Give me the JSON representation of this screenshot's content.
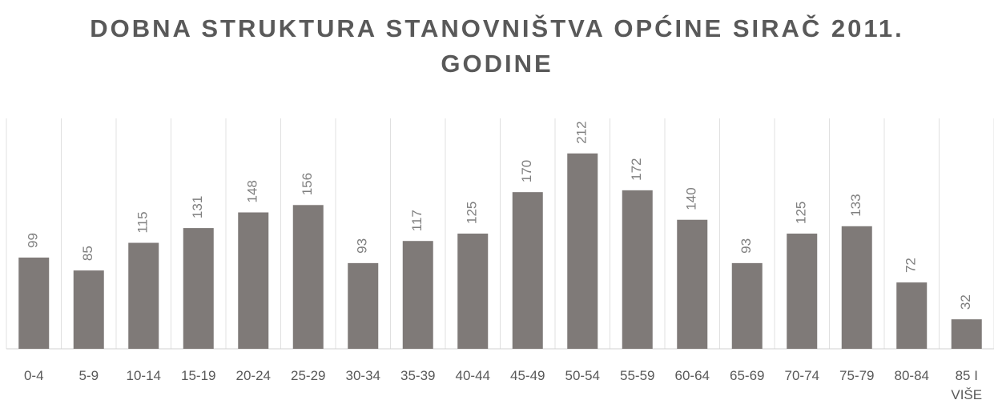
{
  "chart_data": {
    "type": "bar",
    "title": "DOBNA STRUKTURA STANOVNIŠTVA OPĆINE SIRAČ 2011. GODINE",
    "categories": [
      "0-4",
      "5-9",
      "10-14",
      "15-19",
      "20-24",
      "25-29",
      "30-34",
      "35-39",
      "40-44",
      "45-49",
      "50-54",
      "55-59",
      "60-64",
      "65-69",
      "70-74",
      "75-79",
      "80-84",
      "85 I VIŠE"
    ],
    "values": [
      99,
      85,
      115,
      131,
      148,
      156,
      93,
      117,
      125,
      170,
      212,
      172,
      140,
      93,
      125,
      133,
      72,
      32
    ],
    "color": "#7f7a78",
    "ylim": [
      0,
      250
    ]
  }
}
